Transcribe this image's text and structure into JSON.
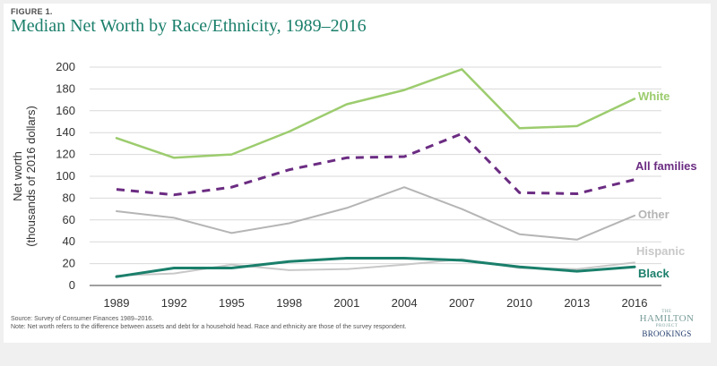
{
  "figure_label": "FIGURE 1.",
  "title": "Median Net Worth by Race/Ethnicity, 1989–2016",
  "source_lines": [
    "Source: Survey of Consumer Finances 1989–2016.",
    "Note: Net worth refers to the difference between assets and debt for a household head. Race and ethnicity are those of the survey respondent."
  ],
  "logo": {
    "the": "THE",
    "hamilton": "HAMILTON",
    "project": "PROJECT",
    "brookings": "BROOKINGS"
  },
  "chart_data": {
    "type": "line",
    "title": "Median Net Worth by Race/Ethnicity, 1989–2016",
    "xlabel": "",
    "ylabel": [
      "Net worth",
      "(thousands of 2016 dollars)"
    ],
    "x": [
      "1989",
      "1992",
      "1995",
      "1998",
      "2001",
      "2004",
      "2007",
      "2010",
      "2013",
      "2016"
    ],
    "ylim": [
      0,
      200
    ],
    "yticks": [
      0,
      20,
      40,
      60,
      80,
      100,
      120,
      140,
      160,
      180,
      200
    ],
    "grid": true,
    "series": [
      {
        "name": "White",
        "color": "#9ccc6e",
        "dashed": false,
        "width": 2.5,
        "values": [
          135,
          117,
          120,
          141,
          166,
          179,
          198,
          144,
          146,
          171
        ]
      },
      {
        "name": "All families",
        "color": "#6b2c82",
        "dashed": true,
        "width": 3,
        "values": [
          88,
          83,
          90,
          106,
          117,
          118,
          139,
          85,
          84,
          97
        ]
      },
      {
        "name": "Other",
        "color": "#b5b5b5",
        "dashed": false,
        "width": 2,
        "values": [
          68,
          62,
          48,
          57,
          71,
          90,
          70,
          47,
          42,
          64
        ]
      },
      {
        "name": "Hispanic",
        "color": "#c8c8c8",
        "dashed": false,
        "width": 2,
        "values": [
          9,
          11,
          19,
          14,
          15,
          19,
          24,
          16,
          15,
          21
        ]
      },
      {
        "name": "Black",
        "color": "#1a7f6b",
        "dashed": false,
        "width": 3,
        "values": [
          8,
          16,
          16,
          22,
          25,
          25,
          23,
          17,
          13,
          17
        ]
      }
    ]
  }
}
